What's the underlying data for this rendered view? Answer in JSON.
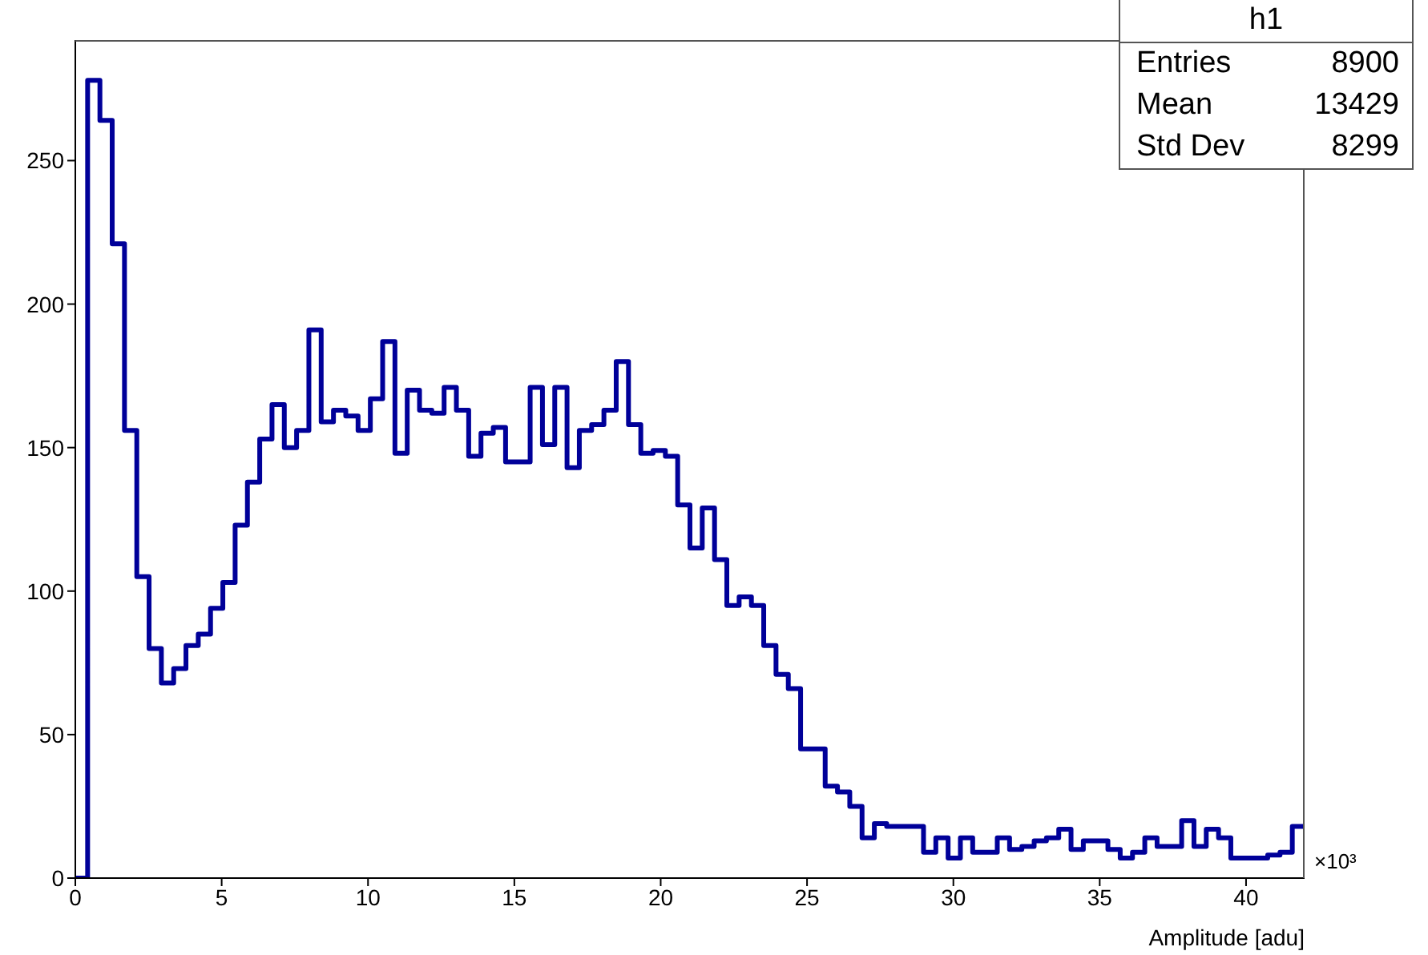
{
  "chart_data": {
    "type": "histogram",
    "xlabel": "Amplitude [adu]",
    "color": "#000099",
    "bins": [
      0,
      0.42,
      0.84,
      1.26,
      1.68,
      2.1,
      2.52,
      2.94,
      3.36,
      3.78,
      4.2,
      4.62,
      5.04,
      5.46,
      5.88,
      6.3,
      6.72,
      7.14,
      7.56,
      7.98,
      8.4,
      8.82,
      9.24,
      9.66,
      10.08,
      10.5,
      10.92,
      11.34,
      11.76,
      12.18,
      12.6,
      13.02,
      13.44,
      13.86,
      14.28,
      14.7,
      15.12,
      15.54,
      15.96,
      16.38,
      16.8,
      17.22,
      17.64,
      18.06,
      18.48,
      18.9,
      19.32,
      19.74,
      20.16,
      20.58,
      21,
      21.42,
      21.84,
      22.26,
      22.68,
      23.1,
      23.52,
      23.94,
      24.36,
      24.78,
      25.2,
      25.62,
      26.04,
      26.46,
      26.88,
      27.3,
      27.72,
      28.14,
      28.56,
      28.98,
      29.4,
      29.82,
      30.24,
      30.66,
      31.08,
      31.5,
      31.92,
      32.34,
      32.76,
      33.18,
      33.6,
      34.02,
      34.44,
      34.86,
      35.28,
      35.7,
      36.12,
      36.54,
      36.96,
      37.38,
      37.8,
      38.22,
      38.64,
      39.06,
      39.48,
      39.9,
      40.32,
      40.74,
      41.16,
      41.58,
      42
    ],
    "values": [
      0,
      278,
      264,
      221,
      156,
      105,
      80,
      68,
      73,
      81,
      85,
      94,
      103,
      123,
      138,
      153,
      165,
      150,
      156,
      191,
      159,
      163,
      161,
      156,
      167,
      187,
      148,
      170,
      163,
      162,
      171,
      163,
      147,
      155,
      157,
      145,
      145,
      171,
      151,
      171,
      143,
      156,
      158,
      163,
      180,
      158,
      148,
      149,
      147,
      130,
      115,
      129,
      111,
      95,
      98,
      95,
      81,
      71,
      66,
      45,
      45,
      32,
      30,
      25,
      14,
      19,
      18,
      18,
      18,
      9,
      14,
      7,
      14,
      9,
      9,
      14,
      10,
      11,
      13,
      14,
      17,
      10,
      13,
      13,
      10,
      7,
      9,
      14,
      11,
      11,
      20,
      11,
      17,
      14,
      7,
      7,
      7,
      8,
      9,
      18
    ],
    "xlim": [
      0,
      42
    ],
    "xticks": [
      0,
      5,
      10,
      15,
      20,
      25,
      30,
      35,
      40
    ],
    "ylim": [
      0,
      292
    ],
    "yticks": [
      0,
      50,
      100,
      150,
      200,
      250
    ],
    "grid": false,
    "legend": false,
    "annotations": [
      "×10³",
      "h1",
      "Entries",
      "8900",
      "Mean",
      "13429",
      "Std Dev",
      "8299"
    ]
  }
}
